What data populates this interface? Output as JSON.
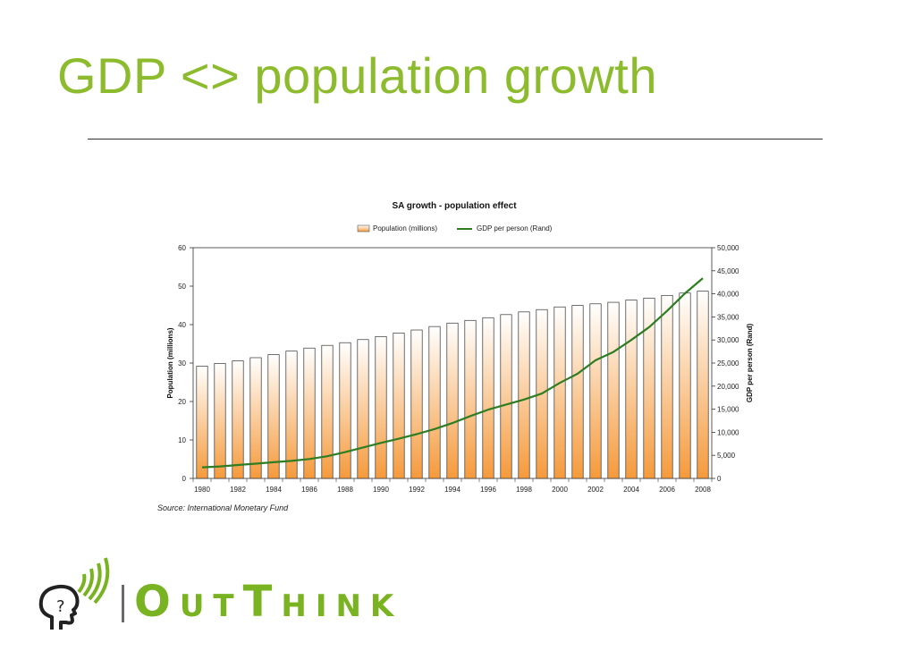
{
  "slide": {
    "title": "GDP <> population growth",
    "source": "Source: International Monetary Fund"
  },
  "logo": {
    "word_first_cap": "O",
    "word_first_rest": "UT",
    "word_second_cap": "T",
    "word_second_rest": "HINK",
    "brand_color": "#7ab321"
  },
  "colors": {
    "title": "#8dbb2e",
    "line": "#2e7d22",
    "bar_top": "#ffffff",
    "bar_bottom": "#f59a3c"
  },
  "chart_data": {
    "type": "bar",
    "title": "SA growth - population effect",
    "xlabel": "",
    "ylabel": "Population (millions)",
    "y2label": "GDP per person (Rand)",
    "ylim": [
      0,
      60
    ],
    "y2lim": [
      0,
      50000
    ],
    "yticks": [
      0,
      10,
      20,
      30,
      40,
      50,
      60
    ],
    "y2ticks": [
      0,
      5000,
      10000,
      15000,
      20000,
      25000,
      30000,
      35000,
      40000,
      45000,
      50000
    ],
    "ytick_labels": [
      "0",
      "10",
      "20",
      "30",
      "40",
      "50",
      "60"
    ],
    "y2tick_labels": [
      "0",
      "5,000",
      "10,000",
      "15,000",
      "20,000",
      "25,000",
      "30,000",
      "35,000",
      "40,000",
      "45,000",
      "50,000"
    ],
    "xtick_labels": [
      "1980",
      "1982",
      "1984",
      "1986",
      "1988",
      "1990",
      "1992",
      "1994",
      "1996",
      "1998",
      "2000",
      "2002",
      "2004",
      "2006",
      "2008"
    ],
    "categories": [
      "1980",
      "1981",
      "1982",
      "1983",
      "1984",
      "1985",
      "1986",
      "1987",
      "1988",
      "1989",
      "1990",
      "1991",
      "1992",
      "1993",
      "1994",
      "1995",
      "1996",
      "1997",
      "1998",
      "1999",
      "2000",
      "2001",
      "2002",
      "2003",
      "2004",
      "2005",
      "2006",
      "2007",
      "2008"
    ],
    "legend_position": "top-center",
    "grid": false,
    "series": [
      {
        "name": "Population (millions)",
        "type": "bar",
        "axis": "left",
        "values": [
          29.2,
          29.9,
          30.6,
          31.4,
          32.2,
          33.1,
          33.9,
          34.6,
          35.3,
          36.1,
          36.9,
          37.8,
          38.6,
          39.5,
          40.4,
          41.1,
          41.8,
          42.6,
          43.3,
          43.9,
          44.6,
          45.0,
          45.4,
          45.8,
          46.4,
          46.9,
          47.6,
          48.2,
          48.7
        ]
      },
      {
        "name": "GDP per person (Rand)",
        "type": "line",
        "axis": "right",
        "values": [
          2400,
          2600,
          2900,
          3200,
          3500,
          3800,
          4200,
          4800,
          5700,
          6700,
          7700,
          8600,
          9600,
          10700,
          12000,
          13500,
          14900,
          16000,
          17100,
          18400,
          20700,
          22700,
          25600,
          27400,
          30000,
          32800,
          36300,
          40100,
          43400
        ]
      }
    ]
  }
}
